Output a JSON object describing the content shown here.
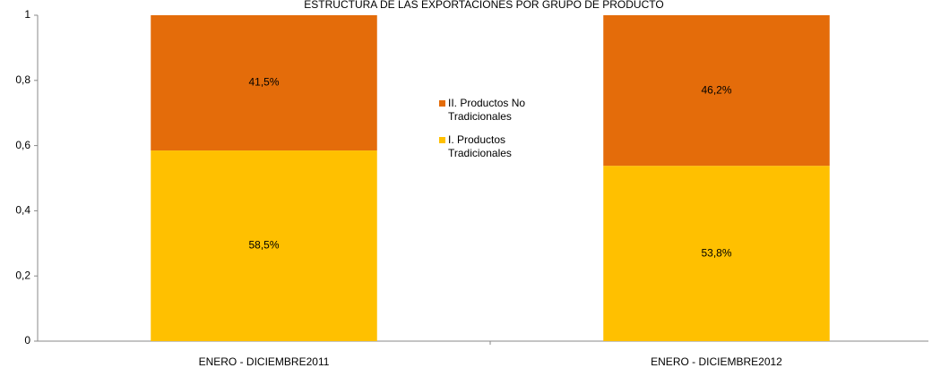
{
  "chart_data": {
    "type": "bar",
    "stacked": true,
    "title": "ESTRUCTURA DE LAS EXPORTACIONES POR GRUPO DE PRODUCTO",
    "categories": [
      "ENERO - DICIEMBRE2011",
      "ENERO - DICIEMBRE2012"
    ],
    "series": [
      {
        "name": "I. Productos Tradicionales",
        "color": "#ffc000",
        "values": [
          0.585,
          0.538
        ],
        "value_labels": [
          "58,5%",
          "53,8%"
        ]
      },
      {
        "name": "II. Productos No Tradicionales",
        "color": "#e46c0a",
        "values": [
          0.415,
          0.462
        ],
        "value_labels": [
          "41,5%",
          "46,2%"
        ]
      }
    ],
    "ylim": [
      0,
      1
    ],
    "yticks": [
      0,
      {
        "value": 0.2,
        "label": "0,2"
      },
      {
        "value": 0.4,
        "label": "0,4"
      },
      {
        "value": 0.6,
        "label": "0,6"
      },
      {
        "value": 0.8,
        "label": "0,8"
      },
      1
    ],
    "grid": false,
    "legend": "center"
  }
}
